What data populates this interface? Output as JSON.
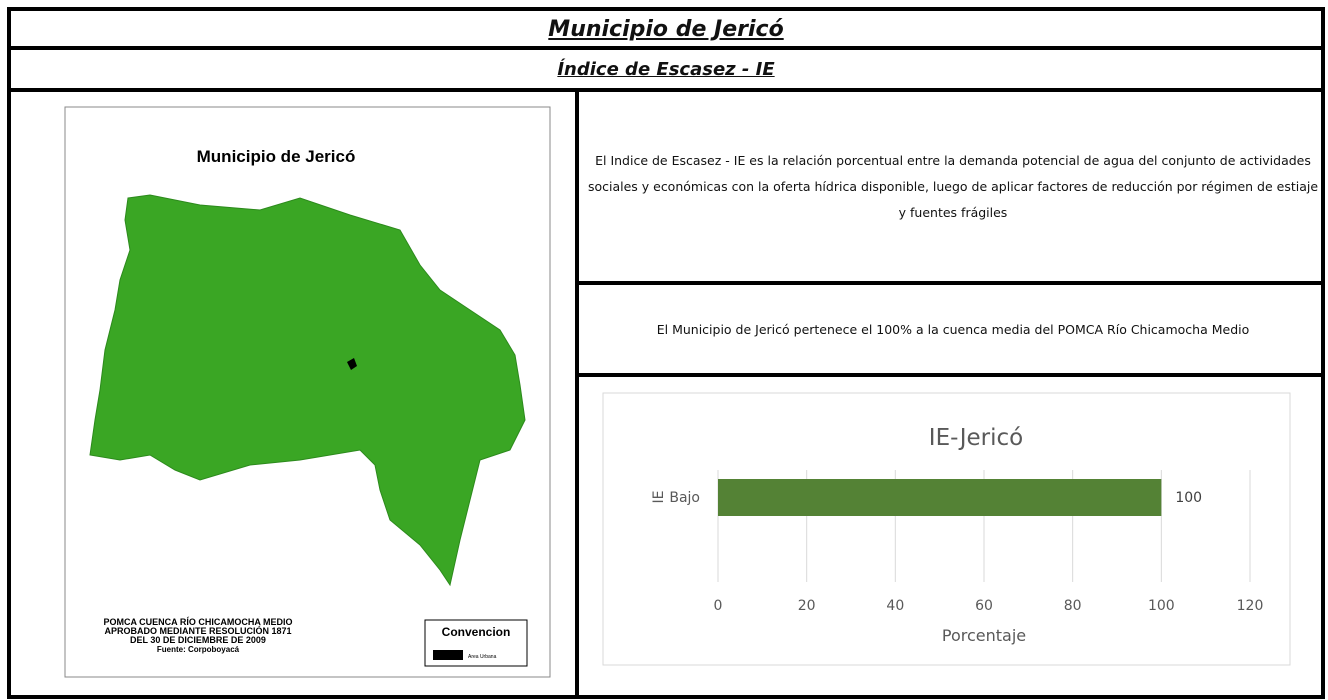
{
  "header": {
    "title": "Municipio de Jericó",
    "subtitle": "Índice de Escasez - IE"
  },
  "map": {
    "title": "Municipio de Jericó",
    "footer": [
      "POMCA CUENCA RÍO CHICAMOCHA MEDIO",
      "APROBADO MEDIANTE RESOLUCIÓN 1871",
      "DEL 30 DE DICIEMBRE DE 2009",
      "Fuente: Corpoboyacá"
    ],
    "legend": {
      "title": "Convencion",
      "item": "Area Urbana"
    }
  },
  "description": "El Indice de Escasez - IE es la relación porcentual entre la demanda potencial de agua del conjunto de actividades sociales y económicas con la oferta hídrica disponible, luego de aplicar factores de reducción por régimen de estiaje y fuentes frágiles",
  "note": "El Municipio de Jericó pertenece el 100% a la cuenca media del POMCA Río Chicamocha Medio",
  "chart_data": {
    "type": "bar",
    "orientation": "horizontal",
    "title": "IE-Jericó",
    "category_group": "IE",
    "categories": [
      "Bajo"
    ],
    "values": [
      100
    ],
    "color": "#548235",
    "x_label": "Porcentaje",
    "xlim": [
      0,
      120
    ],
    "xticks": [
      0,
      20,
      40,
      60,
      80,
      100,
      120
    ],
    "grid": true
  }
}
